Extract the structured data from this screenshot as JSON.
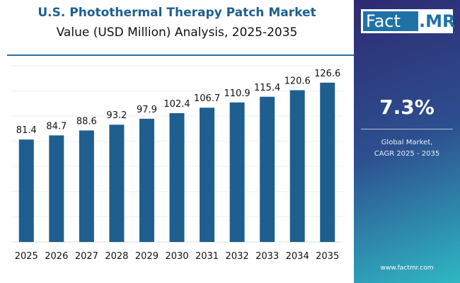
{
  "chart_data": {
    "type": "bar",
    "title": "U.S. Photothermal Therapy Patch Market",
    "subtitle": "Value (USD Million) Analysis, 2025-2035",
    "categories": [
      "2025",
      "2026",
      "2027",
      "2028",
      "2029",
      "2030",
      "2031",
      "2032",
      "2033",
      "2034",
      "2035"
    ],
    "values": [
      81.4,
      84.7,
      88.6,
      93.2,
      97.9,
      102.4,
      106.7,
      110.9,
      115.4,
      120.6,
      126.6
    ],
    "ylim": [
      0,
      140
    ],
    "grid": true,
    "bar_color": "#1f5f8f"
  },
  "panel": {
    "logo_left": "Fact",
    "logo_right": ".MR",
    "cagr": "7.3%",
    "cagr_label_1": "Global Market,",
    "cagr_label_2": "CAGR 2025 - 2035",
    "url": "www.factmr.com"
  }
}
